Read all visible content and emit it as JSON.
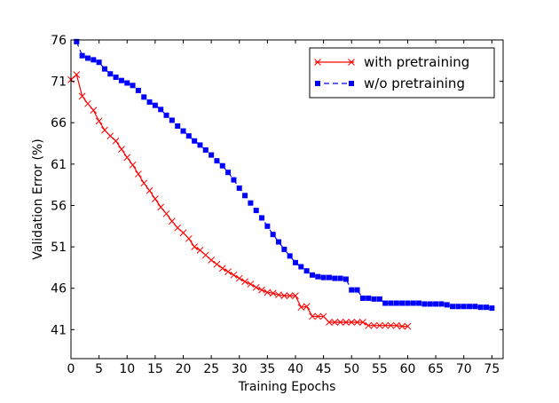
{
  "chart_data": {
    "type": "line",
    "title": "",
    "xlabel": "Training Epochs",
    "ylabel": "Validation Error (%)",
    "xlim": [
      0,
      77
    ],
    "ylim": [
      37.5,
      76
    ],
    "xticks": [
      0,
      5,
      10,
      15,
      20,
      25,
      30,
      35,
      40,
      45,
      50,
      55,
      60,
      65,
      70,
      75
    ],
    "yticks": [
      41,
      46,
      51,
      56,
      61,
      66,
      71,
      76
    ],
    "grid": false,
    "legend_position": "top-right",
    "series": [
      {
        "name": "with pretraining",
        "color": "#ff0000",
        "line_style": "solid",
        "marker": "x",
        "x": [
          0,
          1,
          2,
          3,
          4,
          5,
          6,
          7,
          8,
          9,
          10,
          11,
          12,
          13,
          14,
          15,
          16,
          17,
          18,
          19,
          20,
          21,
          22,
          23,
          24,
          25,
          26,
          27,
          28,
          29,
          30,
          31,
          32,
          33,
          34,
          35,
          36,
          37,
          38,
          39,
          40,
          41,
          42,
          43,
          44,
          45,
          46,
          47,
          48,
          49,
          50,
          51,
          52,
          53,
          54,
          55,
          56,
          57,
          58,
          59,
          60
        ],
        "y": [
          71.2,
          71.8,
          69.2,
          68.3,
          67.5,
          66.2,
          65.1,
          64.4,
          63.8,
          62.8,
          61.8,
          60.9,
          59.8,
          58.7,
          57.8,
          56.8,
          55.8,
          55.0,
          54.1,
          53.3,
          52.7,
          52.0,
          51.0,
          50.6,
          50.0,
          49.4,
          48.9,
          48.4,
          48.0,
          47.6,
          47.2,
          46.8,
          46.5,
          46.1,
          45.8,
          45.5,
          45.4,
          45.2,
          45.1,
          45.1,
          45.1,
          43.7,
          43.8,
          42.6,
          42.6,
          42.6,
          41.9,
          41.9,
          41.9,
          41.9,
          41.9,
          41.9,
          41.9,
          41.5,
          41.5,
          41.5,
          41.5,
          41.5,
          41.5,
          41.4,
          41.4
        ]
      },
      {
        "name": "w/o pretraining",
        "color": "#0000ff",
        "line_style": "dashed",
        "marker": "square",
        "x": [
          1,
          2,
          3,
          4,
          5,
          6,
          7,
          8,
          9,
          10,
          11,
          12,
          13,
          14,
          15,
          16,
          17,
          18,
          19,
          20,
          21,
          22,
          23,
          24,
          25,
          26,
          27,
          28,
          29,
          30,
          31,
          32,
          33,
          34,
          35,
          36,
          37,
          38,
          39,
          40,
          41,
          42,
          43,
          44,
          45,
          46,
          47,
          48,
          49,
          50,
          51,
          52,
          53,
          54,
          55,
          56,
          57,
          58,
          59,
          60,
          61,
          62,
          63,
          64,
          65,
          66,
          67,
          68,
          69,
          70,
          71,
          72,
          73,
          74,
          75
        ],
        "y": [
          75.8,
          74.1,
          73.8,
          73.6,
          73.3,
          72.5,
          71.9,
          71.5,
          71.1,
          70.8,
          70.5,
          69.9,
          69.1,
          68.5,
          68.1,
          67.6,
          66.9,
          66.3,
          65.6,
          65.0,
          64.4,
          63.8,
          63.3,
          62.7,
          62.1,
          61.4,
          60.8,
          60.0,
          59.1,
          58.1,
          57.2,
          56.3,
          55.4,
          54.5,
          53.5,
          52.5,
          51.6,
          50.7,
          49.9,
          49.1,
          48.6,
          48.1,
          47.6,
          47.4,
          47.3,
          47.3,
          47.2,
          47.2,
          47.1,
          45.8,
          45.8,
          44.8,
          44.8,
          44.7,
          44.7,
          44.2,
          44.2,
          44.2,
          44.2,
          44.2,
          44.2,
          44.2,
          44.1,
          44.1,
          44.1,
          44.1,
          44.0,
          43.8,
          43.8,
          43.8,
          43.8,
          43.8,
          43.7,
          43.7,
          43.6
        ]
      }
    ]
  }
}
